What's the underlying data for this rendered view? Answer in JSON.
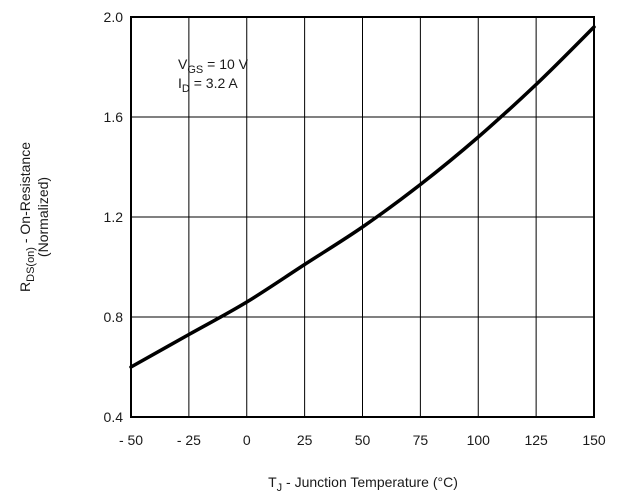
{
  "chart_data": {
    "type": "line",
    "title": "",
    "xlabel": {
      "main": "T",
      "sub": "J",
      "rest": " - Junction Temperature (°C)"
    },
    "ylabel": {
      "line1_main": "R",
      "line1_sub": "DS(on)",
      "line1_rest": " - On-Resistance",
      "line2": "(Normalized)"
    },
    "xlim": [
      -50,
      150
    ],
    "ylim": [
      0.4,
      2.0
    ],
    "grid": true,
    "x_ticks": [
      -50,
      -25,
      0,
      25,
      50,
      75,
      100,
      125,
      150
    ],
    "x_tick_labels": [
      "- 50",
      "- 25",
      "0",
      "25",
      "50",
      "75",
      "100",
      "125",
      "150"
    ],
    "y_ticks": [
      0.4,
      0.8,
      1.2,
      1.6,
      2.0
    ],
    "y_tick_labels": [
      "0.4",
      "0.8",
      "1.2",
      "1.6",
      "2.0"
    ],
    "series": [
      {
        "x": [
          -50,
          -25,
          0,
          25,
          50,
          75,
          100,
          125,
          150
        ],
        "y": [
          0.6,
          0.73,
          0.86,
          1.01,
          1.16,
          1.33,
          1.52,
          1.73,
          1.96
        ]
      }
    ],
    "annotations": [
      {
        "main": "V",
        "sub": "GS",
        "rest": " = 10 V"
      },
      {
        "main": "I",
        "sub": "D",
        "rest": " = 3.2 A"
      }
    ],
    "colors": {
      "line": "#000000",
      "grid": "#000000",
      "text": "#1a1a1a"
    }
  }
}
